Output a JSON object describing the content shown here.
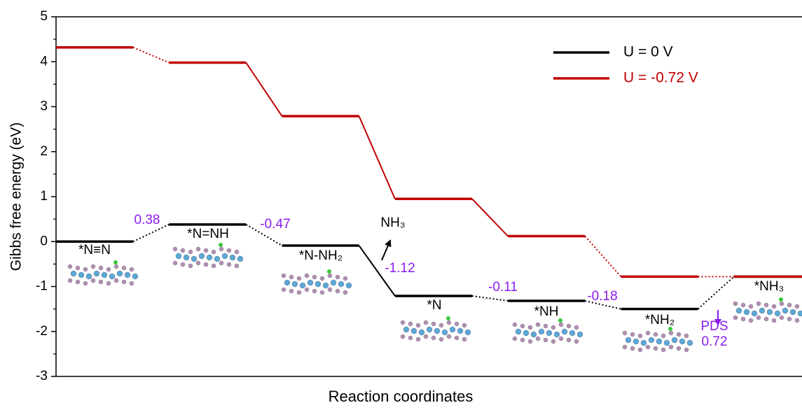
{
  "chart_data": {
    "type": "energy-levels",
    "xlabel": "Reaction coordinates",
    "ylabel": "Gibbs free energy (eV)",
    "categories": [
      "*N≡N",
      "*N=NH",
      "*N-NH₂",
      "*N",
      "*NH",
      "*NH₂",
      "*NH₃"
    ],
    "series": [
      {
        "name": "U = 0 V",
        "color": "#000000",
        "values": [
          0,
          0.38,
          -0.09,
          -1.21,
          -1.32,
          -1.5,
          -0.78
        ]
      },
      {
        "name": "U = -0.72 V",
        "color": "#c00000",
        "values": [
          4.32,
          3.98,
          2.79,
          0.95,
          0.12,
          -0.78,
          -0.78
        ]
      }
    ],
    "step_energies": [
      0.38,
      -0.47,
      -1.12,
      -0.11,
      -0.18
    ],
    "step_color": "#8b1cf0",
    "released": "NH₃",
    "pds_label": "PDS",
    "pds_value": 0.72,
    "ylim": [
      -3,
      5
    ],
    "yticks": [
      -3,
      -2,
      -1,
      0,
      1,
      2,
      3,
      4,
      5
    ]
  }
}
